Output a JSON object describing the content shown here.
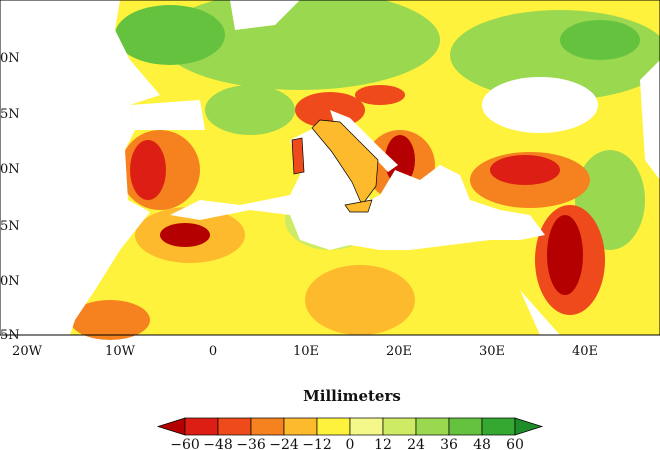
{
  "map": {
    "lat_labels": [
      "0N",
      "5N",
      "0N",
      "5N",
      "0N",
      "5N"
    ],
    "lon_labels": [
      "20W",
      "10W",
      "0",
      "10E",
      "20E",
      "30E",
      "40E"
    ],
    "colorbar": {
      "title": "Millimeters",
      "tick_labels": [
        "−60",
        "−48",
        "−36",
        "−24",
        "−12",
        "0",
        "12",
        "24",
        "36",
        "48",
        "60"
      ],
      "colors": [
        "#b40000",
        "#dc1e14",
        "#ee4a1c",
        "#f5821f",
        "#fcba2c",
        "#fff23c",
        "#f4f88a",
        "#cdeb64",
        "#9ad850",
        "#64c23e",
        "#34a830",
        "#1e8c28"
      ]
    }
  }
}
